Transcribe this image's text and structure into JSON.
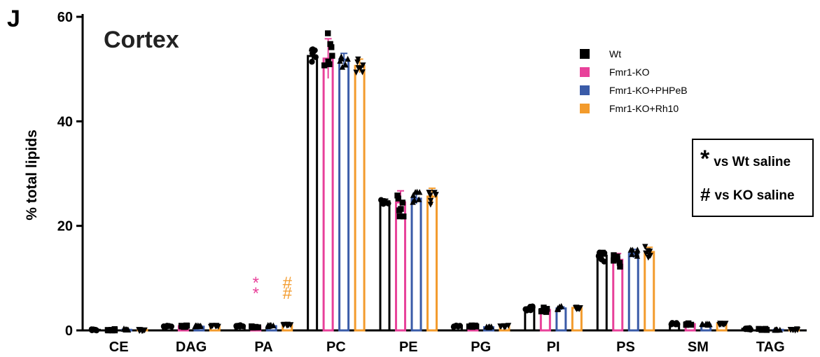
{
  "panel_letter": "J",
  "legend": [
    {
      "label": "Wt",
      "color": "#000000"
    },
    {
      "label": "Fmr1-KO",
      "color": "#E8419A"
    },
    {
      "label": "Fmr1-KO+PHPeB",
      "color": "#3A5BA8"
    },
    {
      "label": "Fmr1-KO+Rh10",
      "color": "#F39B2C"
    }
  ],
  "significance_legend": [
    {
      "symbol": "*",
      "text": "vs Wt saline"
    },
    {
      "symbol": "#",
      "text": "vs KO saline"
    }
  ],
  "annotations": [
    {
      "category": "PA",
      "series": "Fmr1-KO",
      "text": "**",
      "color": "#E8419A"
    },
    {
      "category": "PA",
      "series": "Fmr1-KO+Rh10",
      "text": "##",
      "color": "#F39B2C"
    }
  ],
  "chart_data": {
    "type": "bar",
    "title": "Cortex",
    "xlabel": "",
    "ylabel": "% total lipids",
    "ylim": [
      0,
      60
    ],
    "yticks": [
      0,
      20,
      40,
      60
    ],
    "grid": false,
    "legend_position": "top-right",
    "categories": [
      "CE",
      "DAG",
      "PA",
      "PC",
      "PE",
      "PG",
      "PI",
      "PS",
      "SM",
      "TAG"
    ],
    "series": [
      {
        "name": "Wt",
        "color": "#000000",
        "marker": "circle",
        "values": [
          0.1,
          0.8,
          0.9,
          52.5,
          24.7,
          0.8,
          4.2,
          14.3,
          1.3,
          0.3
        ],
        "errors": [
          0.05,
          0.1,
          0.1,
          1.0,
          0.4,
          0.1,
          0.3,
          1.0,
          0.1,
          0.1
        ]
      },
      {
        "name": "Fmr1-KO",
        "color": "#E8419A",
        "marker": "square",
        "values": [
          0.1,
          0.8,
          0.7,
          52.0,
          24.5,
          0.8,
          3.9,
          13.5,
          1.2,
          0.2
        ],
        "errors": [
          0.05,
          0.1,
          0.1,
          3.8,
          2.2,
          0.1,
          0.4,
          1.2,
          0.1,
          0.1
        ]
      },
      {
        "name": "Fmr1-KO+PHPeB",
        "color": "#3A5BA8",
        "marker": "triangle-up",
        "values": [
          0.1,
          0.7,
          0.8,
          51.8,
          25.2,
          0.6,
          4.2,
          14.7,
          1.1,
          0.1
        ],
        "errors": [
          0.05,
          0.1,
          0.1,
          1.2,
          1.0,
          0.1,
          0.3,
          0.8,
          0.1,
          0.05
        ]
      },
      {
        "name": "Fmr1-KO+Rh10",
        "color": "#F39B2C",
        "marker": "triangle-down",
        "values": [
          0.1,
          0.9,
          1.1,
          50.6,
          25.6,
          0.9,
          4.3,
          15.0,
          1.3,
          0.2
        ],
        "errors": [
          0.05,
          0.1,
          0.1,
          1.3,
          1.6,
          0.1,
          0.2,
          0.9,
          0.1,
          0.05
        ]
      }
    ]
  }
}
